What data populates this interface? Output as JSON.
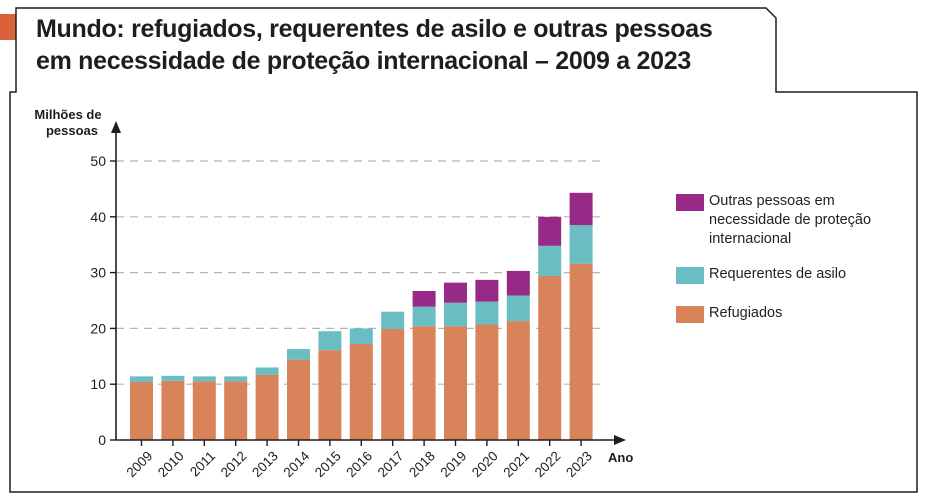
{
  "title": {
    "line1": "Mundo: refugiados, requerentes de asilo e outras pessoas",
    "line2": "em necessidade de proteção internacional – 2009 a 2023"
  },
  "colors": {
    "refugiados": "#d9835a",
    "requerentes": "#6bbdc4",
    "outras": "#962a86",
    "accent": "#d9623a",
    "grid": "#b5b5b5",
    "axis": "#1e1e1e"
  },
  "chart_data": {
    "type": "bar",
    "stacked": true,
    "title": "Mundo: refugiados, requerentes de asilo e outras pessoas em necessidade de proteção internacional – 2009 a 2023",
    "ylabel_line1": "Milhões de",
    "ylabel_line2": "pessoas",
    "xlabel": "Ano",
    "ylim": [
      0,
      50
    ],
    "yticks": [
      0,
      10,
      20,
      30,
      40,
      50
    ],
    "grid": true,
    "legend_position": "right",
    "categories": [
      "2009",
      "2010",
      "2011",
      "2012",
      "2013",
      "2014",
      "2015",
      "2016",
      "2017",
      "2018",
      "2019",
      "2020",
      "2021",
      "2022",
      "2023"
    ],
    "series": [
      {
        "name": "Refugiados",
        "color_key": "refugiados",
        "values": [
          10.4,
          10.6,
          10.5,
          10.5,
          11.7,
          14.4,
          16.1,
          17.2,
          19.9,
          20.4,
          20.4,
          20.7,
          21.3,
          29.4,
          31.6
        ]
      },
      {
        "name": "Requerentes de asilo",
        "color_key": "requerentes",
        "values": [
          1.0,
          0.9,
          0.9,
          0.9,
          1.3,
          1.9,
          3.4,
          2.8,
          3.1,
          3.5,
          4.2,
          4.1,
          4.6,
          5.4,
          6.9
        ]
      },
      {
        "name": "Outras pessoas em necessidade de proteção internacional",
        "color_key": "outras",
        "values": [
          0,
          0,
          0,
          0,
          0,
          0,
          0,
          0,
          0,
          2.8,
          3.6,
          3.9,
          4.4,
          5.2,
          5.8
        ]
      }
    ],
    "legend": [
      {
        "label": "Outras pessoas em necessidade de proteção internacional",
        "color_key": "outras"
      },
      {
        "label": "Requerentes de asilo",
        "color_key": "requerentes"
      },
      {
        "label": "Refugiados",
        "color_key": "refugiados"
      }
    ]
  }
}
